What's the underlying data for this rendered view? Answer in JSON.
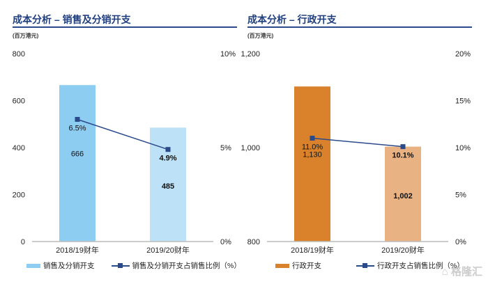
{
  "chart_data": [
    {
      "type": "bar+line",
      "title": "成本分析 – 销售及分销开支",
      "unit": "(百万港元)",
      "categories": [
        "2018/19财年",
        "2019/20财年"
      ],
      "series": [
        {
          "name": "销售及分销开支",
          "type": "bar",
          "values": [
            666,
            485
          ],
          "labels": [
            "666",
            "485"
          ],
          "colors": [
            "#8ecdf2",
            "#bde2f7"
          ]
        },
        {
          "name": "销售及分销开支占销售比例（%）",
          "type": "line",
          "values": [
            6.5,
            4.9
          ],
          "labels": [
            "6.5%",
            "4.9%"
          ],
          "color": "#2a4a8c"
        }
      ],
      "ylim": [
        0,
        800
      ],
      "yticks": [
        "0",
        "200",
        "400",
        "600",
        "800"
      ],
      "y2lim": [
        0,
        10
      ],
      "y2ticks": [
        "0%",
        "5%",
        "10%"
      ]
    },
    {
      "type": "bar+line",
      "title": "成本分析 – 行政开支",
      "unit": "(百万港元)",
      "categories": [
        "2018/19财年",
        "2019/20财年"
      ],
      "series": [
        {
          "name": "行政开支",
          "type": "bar",
          "values": [
            1130,
            1002
          ],
          "labels": [
            "1,130",
            "1,002"
          ],
          "colors": [
            "#d9822b",
            "#e8b282"
          ]
        },
        {
          "name": "行政开支占销售比例（%）",
          "type": "line",
          "values": [
            11.0,
            10.1
          ],
          "labels": [
            "11.0%",
            "10.1%"
          ],
          "color": "#2a4a8c"
        }
      ],
      "ylim": [
        800,
        1200
      ],
      "yticks": [
        "800",
        "1,000",
        "1,200"
      ],
      "y2lim": [
        0,
        20
      ],
      "y2ticks": [
        "0%",
        "5%",
        "10%",
        "15%",
        "20%"
      ]
    }
  ],
  "watermark": "格隆汇"
}
